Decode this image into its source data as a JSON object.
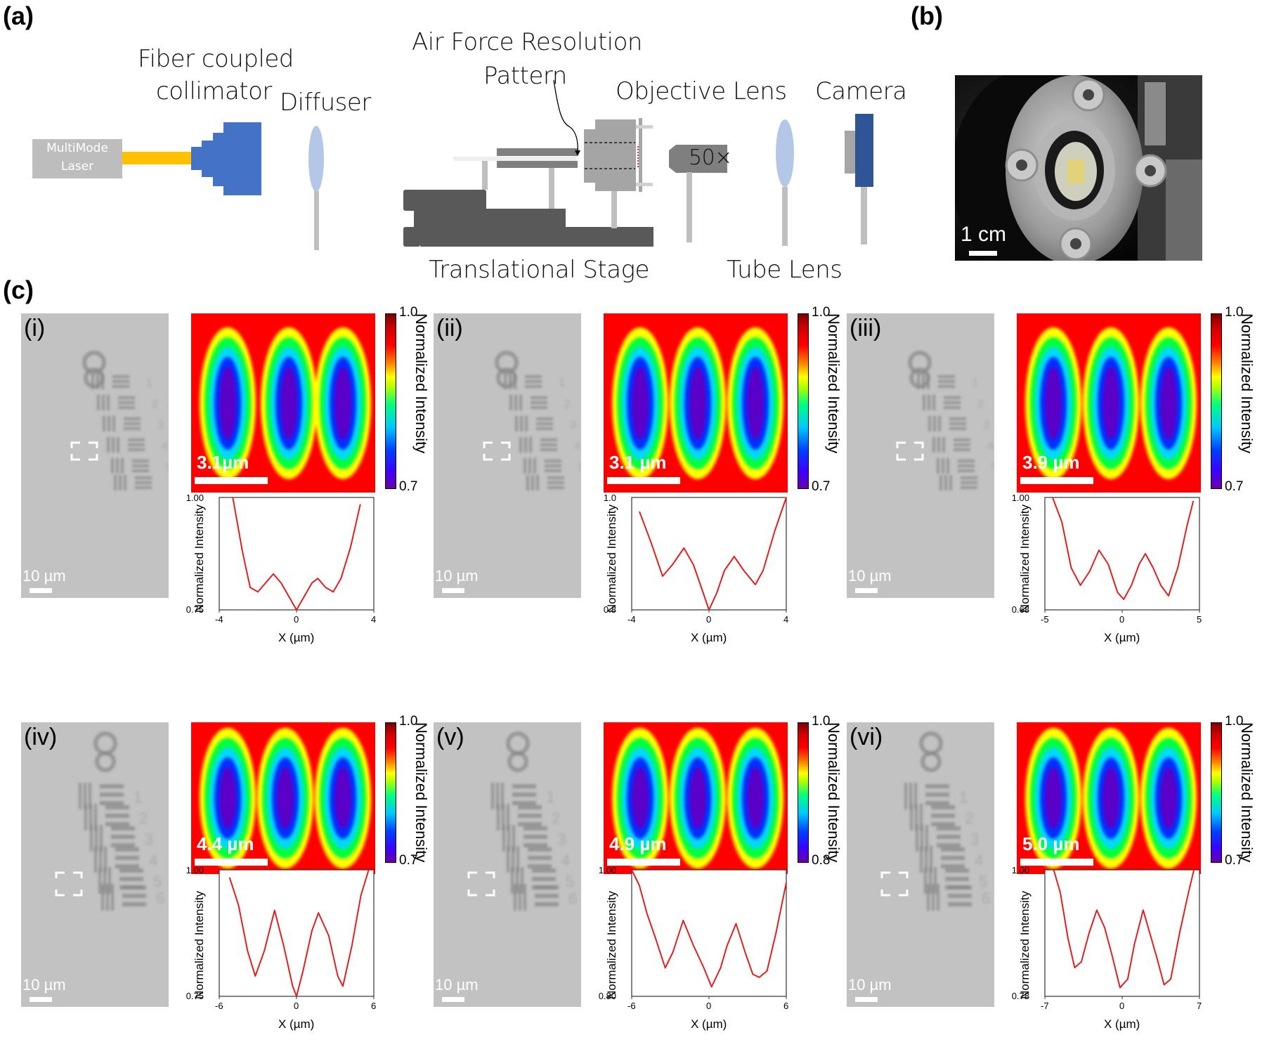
{
  "labels": {
    "a": "(a)",
    "b": "(b)",
    "c": "(c)"
  },
  "diagram": {
    "laser": {
      "line1": "MultiMode",
      "line2": "Laser"
    },
    "collimator": {
      "line1": "Fiber coupled",
      "line2": "collimator"
    },
    "diffuser": "Diffuser",
    "pattern": {
      "line1": "Air Force Resolution",
      "line2": "Pattern"
    },
    "objective": "Objective Lens",
    "magnification": "50×",
    "camera": "Camera",
    "stage": "Translational Stage",
    "tube_lens": "Tube Lens",
    "colors": {
      "laser_box": "#bdbdbd",
      "fiber": "#ffc000",
      "collimator": "#4472c4",
      "lens": "#b4c7e7",
      "post": "#bfbfbf",
      "stage": "#595959",
      "objective": "#a5a5a5",
      "camera": "#2f5597"
    }
  },
  "photo": {
    "scale_label": "1 cm"
  },
  "subpanels": [
    {
      "tag": "(i)",
      "target_scale": "10 µm",
      "heat_scale": "3.1µm",
      "cbar_max": "1.0",
      "cbar_min": "0.7",
      "cbar_title": "Normalized Intensity"
    },
    {
      "tag": "(ii)",
      "target_scale": "10 µm",
      "heat_scale": "3.1 µm",
      "cbar_max": "1.0",
      "cbar_min": "0.7",
      "cbar_title": "Normalized Intensity"
    },
    {
      "tag": "(iii)",
      "target_scale": "10 µm",
      "heat_scale": "3.9 µm",
      "cbar_max": "1.0",
      "cbar_min": "0.7",
      "cbar_title": "Normalized Intensity"
    },
    {
      "tag": "(iv)",
      "target_scale": "10 µm",
      "heat_scale": "4.4 µm",
      "cbar_max": "1.0",
      "cbar_min": "0.7",
      "cbar_title": "Normalized Intensity"
    },
    {
      "tag": "(v)",
      "target_scale": "10 µm",
      "heat_scale": "4.9 µm",
      "cbar_max": "1.0",
      "cbar_min": "0.8",
      "cbar_title": "Normalized Intensity"
    },
    {
      "tag": "(vi)",
      "target_scale": "10 µm",
      "heat_scale": "5.0 µm",
      "cbar_max": "1.0",
      "cbar_min": "0.7",
      "cbar_title": "Normalized Intensity"
    }
  ],
  "chart_data": [
    {
      "type": "line",
      "title": "(i)",
      "xlabel": "X (µm)",
      "ylabel": "Normalized Intensity",
      "xlim": [
        -4,
        4
      ],
      "ylim": [
        0.75,
        1.0
      ],
      "xticks": [
        "-4",
        "0",
        "4"
      ],
      "yticks": [
        "0.75",
        "1.00"
      ],
      "color": "#e02020",
      "x": [
        -3.3,
        -2.8,
        -2.4,
        -2.0,
        -1.6,
        -1.2,
        -0.8,
        -0.4,
        0.0,
        0.4,
        0.8,
        1.1,
        1.5,
        1.9,
        2.3,
        2.8,
        3.3
      ],
      "y": [
        1.0,
        0.88,
        0.8,
        0.79,
        0.81,
        0.83,
        0.81,
        0.78,
        0.75,
        0.78,
        0.81,
        0.82,
        0.8,
        0.79,
        0.82,
        0.89,
        0.985
      ]
    },
    {
      "type": "line",
      "title": "(ii)",
      "xlabel": "X (µm)",
      "ylabel": "Normalized Intensity",
      "xlim": [
        -4,
        4
      ],
      "ylim": [
        0.8,
        1.0
      ],
      "xticks": [
        "-4",
        "0",
        "4"
      ],
      "yticks": [
        "0.8",
        "1.0"
      ],
      "color": "#e02020",
      "x": [
        -3.6,
        -3.0,
        -2.4,
        -1.9,
        -1.3,
        -0.8,
        -0.3,
        0.0,
        0.4,
        0.8,
        1.3,
        1.8,
        2.4,
        2.8,
        3.4,
        4.0
      ],
      "y": [
        0.975,
        0.92,
        0.86,
        0.88,
        0.91,
        0.88,
        0.83,
        0.8,
        0.83,
        0.87,
        0.895,
        0.87,
        0.845,
        0.87,
        0.94,
        1.0
      ]
    },
    {
      "type": "line",
      "title": "(iii)",
      "xlabel": "X (µm)",
      "ylabel": "Normalized Intensity",
      "xlim": [
        -5,
        5
      ],
      "ylim": [
        0.68,
        1.0
      ],
      "xticks": [
        "-5",
        "0",
        "5"
      ],
      "yticks": [
        "0.68",
        "1.00"
      ],
      "color": "#e02020",
      "x": [
        -4.5,
        -3.9,
        -3.3,
        -2.7,
        -2.1,
        -1.5,
        -0.9,
        -0.3,
        0.1,
        0.6,
        1.1,
        1.5,
        2.0,
        2.5,
        3.0,
        3.6,
        4.2,
        4.6
      ],
      "y": [
        1.0,
        0.93,
        0.8,
        0.75,
        0.79,
        0.85,
        0.81,
        0.73,
        0.71,
        0.75,
        0.81,
        0.84,
        0.8,
        0.75,
        0.72,
        0.8,
        0.92,
        0.99
      ]
    },
    {
      "type": "line",
      "title": "(iv)",
      "xlabel": "X (µm)",
      "ylabel": "Normalized Intensity",
      "xlim": [
        -6,
        6
      ],
      "ylim": [
        0.75,
        1.0
      ],
      "xticks": [
        "-6",
        "0",
        "6"
      ],
      "yticks": [
        "0.75",
        "1.00"
      ],
      "color": "#e02020",
      "x": [
        -5.2,
        -4.5,
        -3.8,
        -3.2,
        -2.5,
        -1.7,
        -1.0,
        -0.3,
        0.0,
        0.5,
        1.2,
        1.7,
        2.5,
        3.2,
        3.6,
        4.3,
        5.0,
        5.6
      ],
      "y": [
        0.985,
        0.93,
        0.84,
        0.79,
        0.84,
        0.92,
        0.85,
        0.77,
        0.75,
        0.8,
        0.88,
        0.915,
        0.87,
        0.79,
        0.77,
        0.85,
        0.95,
        1.0
      ]
    },
    {
      "type": "line",
      "title": "(v)",
      "xlabel": "X (µm)",
      "ylabel": "Normalized Intensity",
      "xlim": [
        -6,
        6
      ],
      "ylim": [
        0.8,
        1.0
      ],
      "xticks": [
        "-6",
        "0",
        "6"
      ],
      "yticks": [
        "0.80",
        "1.00"
      ],
      "color": "#e02020",
      "x": [
        -6.0,
        -5.4,
        -4.8,
        -4.2,
        -3.4,
        -2.8,
        -2.0,
        -1.2,
        -0.4,
        0.2,
        0.9,
        1.4,
        2.1,
        2.8,
        3.4,
        3.9,
        4.5,
        5.2,
        6.0
      ],
      "y": [
        1.0,
        0.975,
        0.93,
        0.895,
        0.845,
        0.87,
        0.92,
        0.88,
        0.845,
        0.815,
        0.845,
        0.88,
        0.915,
        0.87,
        0.835,
        0.83,
        0.84,
        0.9,
        0.98
      ]
    },
    {
      "type": "line",
      "title": "(vi)",
      "xlabel": "X (µm)",
      "ylabel": "Normalized Intensity",
      "xlim": [
        -7,
        7
      ],
      "ylim": [
        0.78,
        1.0
      ],
      "xticks": [
        "-7",
        "0",
        "7"
      ],
      "yticks": [
        "0.78",
        "1.00"
      ],
      "color": "#e02020",
      "x": [
        -6.2,
        -5.6,
        -4.9,
        -4.3,
        -3.7,
        -3.0,
        -2.3,
        -1.6,
        -0.9,
        -0.2,
        0.5,
        1.1,
        1.9,
        2.5,
        3.1,
        3.8,
        4.4,
        5.2,
        6.0,
        6.5
      ],
      "y": [
        1.0,
        0.96,
        0.88,
        0.83,
        0.84,
        0.89,
        0.93,
        0.9,
        0.85,
        0.795,
        0.81,
        0.87,
        0.93,
        0.89,
        0.85,
        0.8,
        0.81,
        0.89,
        0.96,
        1.0
      ]
    }
  ]
}
